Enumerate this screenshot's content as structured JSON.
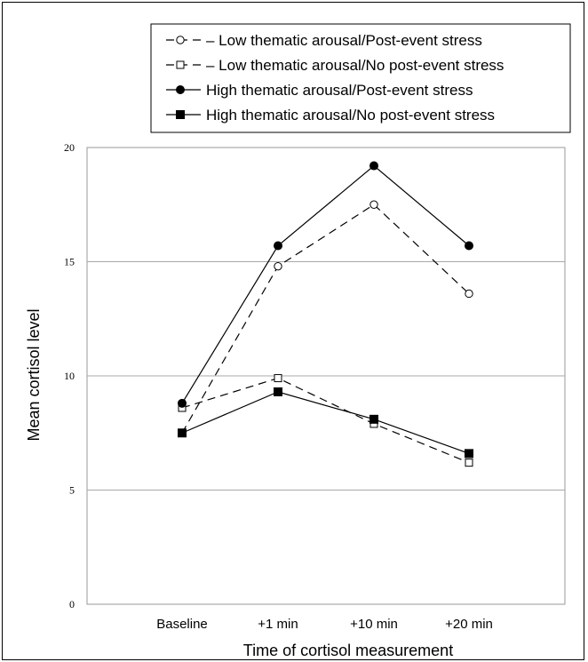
{
  "chart_data": {
    "type": "line",
    "categories": [
      "Baseline",
      "+1 min",
      "+10 min",
      "+20 min"
    ],
    "ylim": [
      0,
      20
    ],
    "yticks": [
      "0",
      "5",
      "10",
      "15",
      "20"
    ],
    "xlabel": "Time of cortisol measurement",
    "ylabel": "Mean cortisol level",
    "grid": "horizontal",
    "legend_position": "top",
    "series": [
      {
        "name": "Low thematic arousal/Post-event stress",
        "values": [
          7.5,
          14.8,
          17.5,
          13.6
        ],
        "marker": "circle-open",
        "line": "dashed",
        "color": "#000000"
      },
      {
        "name": "Low thematic arousal/No post-event stress",
        "values": [
          8.6,
          9.9,
          7.9,
          6.2
        ],
        "marker": "square-open",
        "line": "dashed",
        "color": "#000000"
      },
      {
        "name": "High thematic arousal/Post-event stress",
        "values": [
          8.8,
          15.7,
          19.2,
          15.7
        ],
        "marker": "circle-filled",
        "line": "solid",
        "color": "#000000"
      },
      {
        "name": "High thematic arousal/No post-event stress",
        "values": [
          7.5,
          9.3,
          8.1,
          6.6
        ],
        "marker": "square-filled",
        "line": "solid",
        "color": "#000000"
      }
    ]
  }
}
